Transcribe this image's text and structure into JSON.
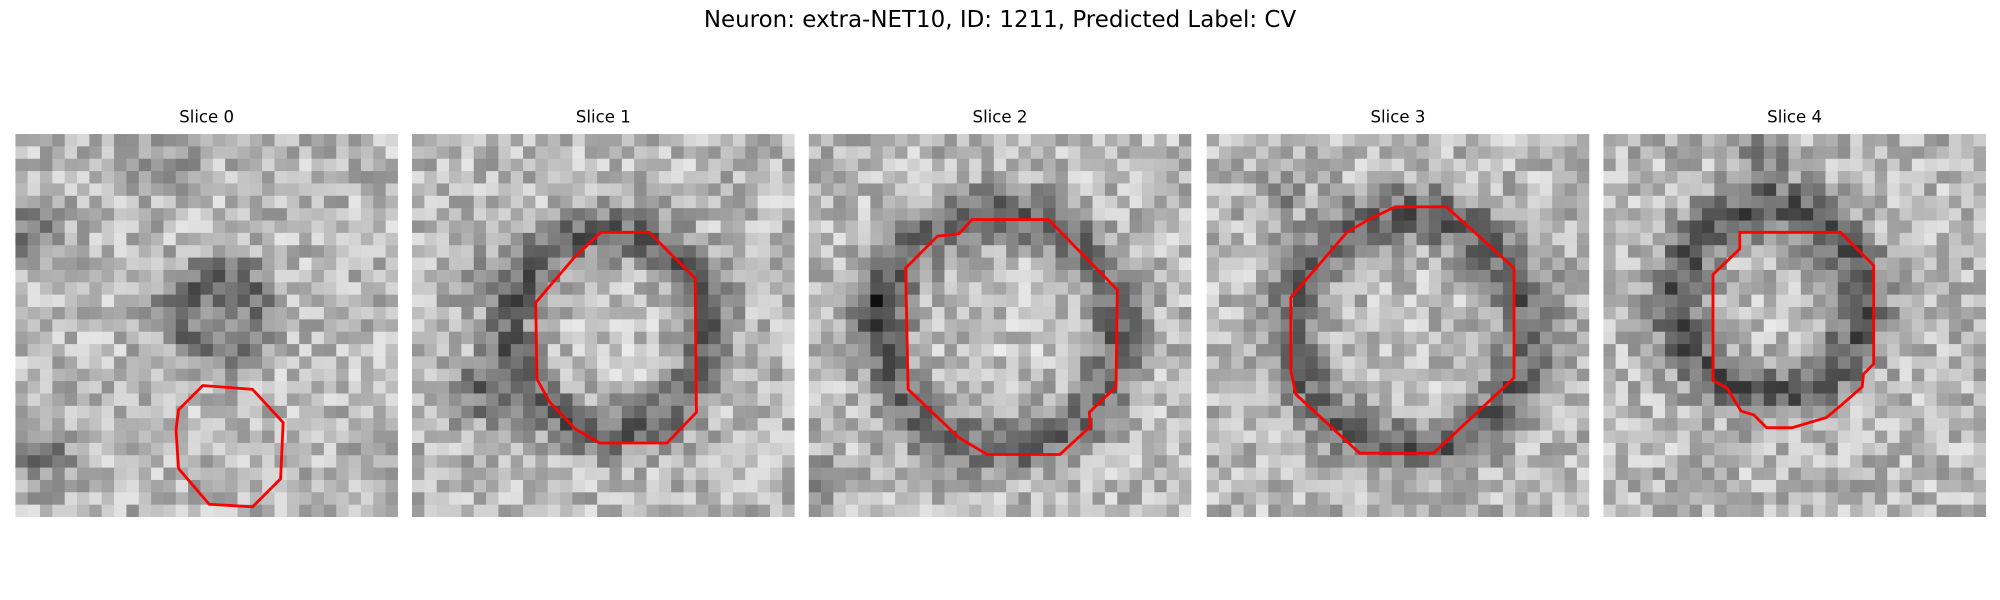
{
  "figure": {
    "title": "Neuron: extra-NET10, ID: 1211, Predicted Label: CV"
  },
  "panels": [
    {
      "title": "Slice 0"
    },
    {
      "title": "Slice 1"
    },
    {
      "title": "Slice 2"
    },
    {
      "title": "Slice 3"
    },
    {
      "title": "Slice 4"
    }
  ],
  "colors": {
    "background": "#ffffff",
    "contour": "#ff0000"
  }
}
